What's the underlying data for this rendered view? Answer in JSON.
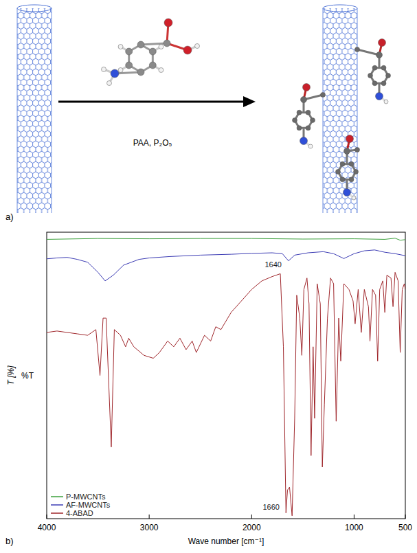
{
  "scheme": {
    "label": "a)",
    "reagents": "PAA, P₂O₅"
  },
  "chart_data": {
    "type": "line",
    "panel_label": "b)",
    "x_label": "Wave number [cm⁻¹]",
    "y_label": "T [%]",
    "y_unit_label": "%T",
    "xlim": [
      4000,
      500
    ],
    "xticks": [
      4000,
      3000,
      2000,
      1000,
      500
    ],
    "ylim": [
      0,
      100
    ],
    "tick_labels": "x",
    "grid": false,
    "legend": "bottom-left",
    "annotations": [
      {
        "text": "1640",
        "x": 1640,
        "y": 88.5
      },
      {
        "text": "1660",
        "x": 1660,
        "y": 3.7
      }
    ],
    "series": [
      {
        "name": "P-MWCNTs",
        "color": "#3ca03c",
        "x": [
          4000,
          3500,
          3000,
          2500,
          2000,
          1500,
          1000,
          700,
          600,
          550,
          500
        ],
        "values": [
          97.5,
          97.8,
          97.7,
          97.8,
          97.8,
          97.6,
          97.7,
          97.5,
          97.9,
          97.2,
          97.4
        ]
      },
      {
        "name": "AF-MWCNTs",
        "color": "#3c3cb4",
        "x": [
          4000,
          3900,
          3800,
          3700,
          3600,
          3500,
          3430,
          3350,
          3250,
          3100,
          3000,
          2800,
          2500,
          2200,
          2000,
          1800,
          1700,
          1640,
          1580,
          1450,
          1300,
          1200,
          1100,
          1000,
          900,
          800,
          700,
          600,
          500
        ],
        "values": [
          90.7,
          91,
          91.2,
          90.5,
          89.5,
          86,
          83,
          85,
          88.5,
          90.5,
          91,
          91.5,
          92,
          92.3,
          92.6,
          92.8,
          92.5,
          90,
          92,
          92.8,
          93.2,
          92.5,
          90.8,
          92.5,
          93.5,
          93.8,
          93,
          92.5,
          91.8
        ]
      },
      {
        "name": "4-ABAD",
        "color": "#a0282d",
        "x": [
          4000,
          3900,
          3800,
          3700,
          3600,
          3520,
          3480,
          3450,
          3420,
          3370,
          3340,
          3280,
          3230,
          3200,
          3150,
          3050,
          2960,
          2900,
          2820,
          2760,
          2700,
          2640,
          2580,
          2540,
          2460,
          2400,
          2350,
          2300,
          2200,
          2100,
          2000,
          1900,
          1800,
          1720,
          1690,
          1665,
          1650,
          1630,
          1605,
          1580,
          1560,
          1530,
          1510,
          1490,
          1460,
          1440,
          1420,
          1400,
          1385,
          1360,
          1330,
          1310,
          1290,
          1260,
          1230,
          1200,
          1175,
          1150,
          1130,
          1100,
          1050,
          1010,
          990,
          960,
          930,
          900,
          860,
          845,
          820,
          790,
          770,
          750,
          720,
          700,
          680,
          640,
          620,
          600,
          570,
          550,
          530,
          510,
          500
        ],
        "values": [
          65,
          65.5,
          65,
          64.5,
          64,
          66,
          50,
          70,
          70,
          25,
          66,
          64,
          60,
          63,
          60,
          57,
          56,
          58,
          62,
          60,
          63,
          59,
          62,
          58,
          64,
          62,
          67,
          66,
          72,
          76,
          80,
          83,
          84.5,
          85.5,
          60,
          2,
          10,
          11,
          1,
          35,
          78,
          70,
          57,
          80,
          84,
          75,
          22,
          60,
          35,
          82,
          75,
          18,
          40,
          70,
          84,
          82,
          34,
          70,
          55,
          82,
          80,
          76,
          68,
          80,
          65,
          80,
          74,
          62,
          80,
          78,
          55,
          80,
          83,
          72,
          85,
          84,
          74,
          86,
          83,
          58,
          80,
          82,
          80
        ]
      }
    ]
  }
}
